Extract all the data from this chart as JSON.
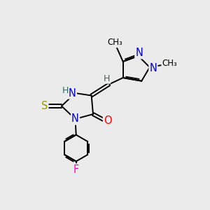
{
  "bg_color": "#ebebeb",
  "atom_colors": {
    "C": "#000000",
    "N": "#0000cc",
    "O": "#ff0000",
    "S": "#999900",
    "F": "#ff00cc",
    "H": "#336666"
  },
  "bond_color": "#000000",
  "figsize": [
    3.0,
    3.0
  ],
  "dpi": 100,
  "xlim": [
    0,
    10
  ],
  "ylim": [
    0,
    10
  ]
}
